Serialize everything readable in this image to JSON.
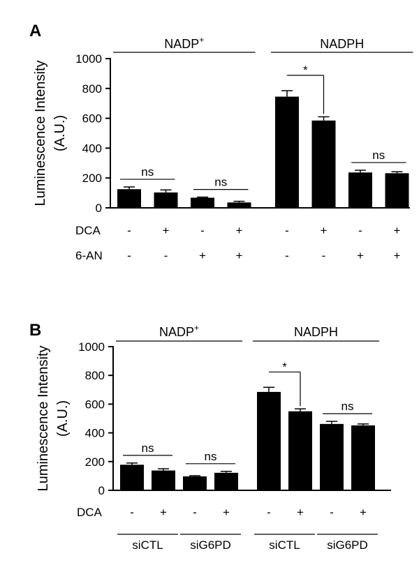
{
  "chart_data": [
    {
      "panel": "A",
      "type": "bar",
      "ylabel_line1": "Luminescence Intensity",
      "ylabel_line2": "(A.U.)",
      "ylim": [
        0,
        1000
      ],
      "yticks": [
        "0",
        "200",
        "400",
        "600",
        "800",
        "1000"
      ],
      "groups": [
        {
          "label": "NADP",
          "sup": "+",
          "bars": [
            0,
            1,
            2,
            3
          ]
        },
        {
          "label": "NADPH",
          "sup": "",
          "bars": [
            4,
            5,
            6,
            7
          ]
        }
      ],
      "values": [
        125,
        103,
        68,
        36,
        745,
        585,
        237,
        232
      ],
      "errors": [
        15,
        17,
        4,
        8,
        40,
        25,
        15,
        10
      ],
      "conditions": [
        {
          "name": "DCA",
          "marks": [
            "-",
            "+",
            "-",
            "+",
            "-",
            "+",
            "-",
            "+"
          ]
        },
        {
          "name": "6-AN",
          "marks": [
            "-",
            "-",
            "+",
            "+",
            "-",
            "-",
            "+",
            "+"
          ]
        }
      ],
      "significance": [
        {
          "bars": [
            0,
            1
          ],
          "label": "ns",
          "style": "line"
        },
        {
          "bars": [
            2,
            3
          ],
          "label": "ns",
          "style": "line"
        },
        {
          "bars": [
            4,
            5
          ],
          "label": "*",
          "style": "bracket"
        },
        {
          "bars": [
            6,
            7
          ],
          "label": "ns",
          "style": "line"
        }
      ],
      "subgroups": []
    },
    {
      "panel": "B",
      "type": "bar",
      "ylabel_line1": "Luminescence Intensity",
      "ylabel_line2": "(A.U.)",
      "ylim": [
        0,
        1000
      ],
      "yticks": [
        "0",
        "200",
        "400",
        "600",
        "800",
        "1000"
      ],
      "groups": [
        {
          "label": "NADP",
          "sup": "+",
          "bars": [
            0,
            1,
            2,
            3
          ]
        },
        {
          "label": "NADPH",
          "sup": "",
          "bars": [
            4,
            5,
            6,
            7
          ]
        }
      ],
      "values": [
        178,
        138,
        97,
        122,
        685,
        550,
        462,
        452
      ],
      "errors": [
        12,
        12,
        5,
        10,
        32,
        17,
        18,
        10
      ],
      "conditions": [
        {
          "name": "DCA",
          "marks": [
            "-",
            "+",
            "-",
            "+",
            "-",
            "+",
            "-",
            "+"
          ]
        }
      ],
      "significance": [
        {
          "bars": [
            0,
            1
          ],
          "label": "ns",
          "style": "line"
        },
        {
          "bars": [
            2,
            3
          ],
          "label": "ns",
          "style": "line"
        },
        {
          "bars": [
            4,
            5
          ],
          "label": "*",
          "style": "bracket"
        },
        {
          "bars": [
            6,
            7
          ],
          "label": "ns",
          "style": "line"
        }
      ],
      "subgroups": [
        {
          "label": "siCTL",
          "bars": [
            0,
            1
          ]
        },
        {
          "label": "siG6PD",
          "bars": [
            2,
            3
          ]
        },
        {
          "label": "siCTL",
          "bars": [
            4,
            5
          ]
        },
        {
          "label": "siG6PD",
          "bars": [
            6,
            7
          ]
        }
      ]
    }
  ]
}
